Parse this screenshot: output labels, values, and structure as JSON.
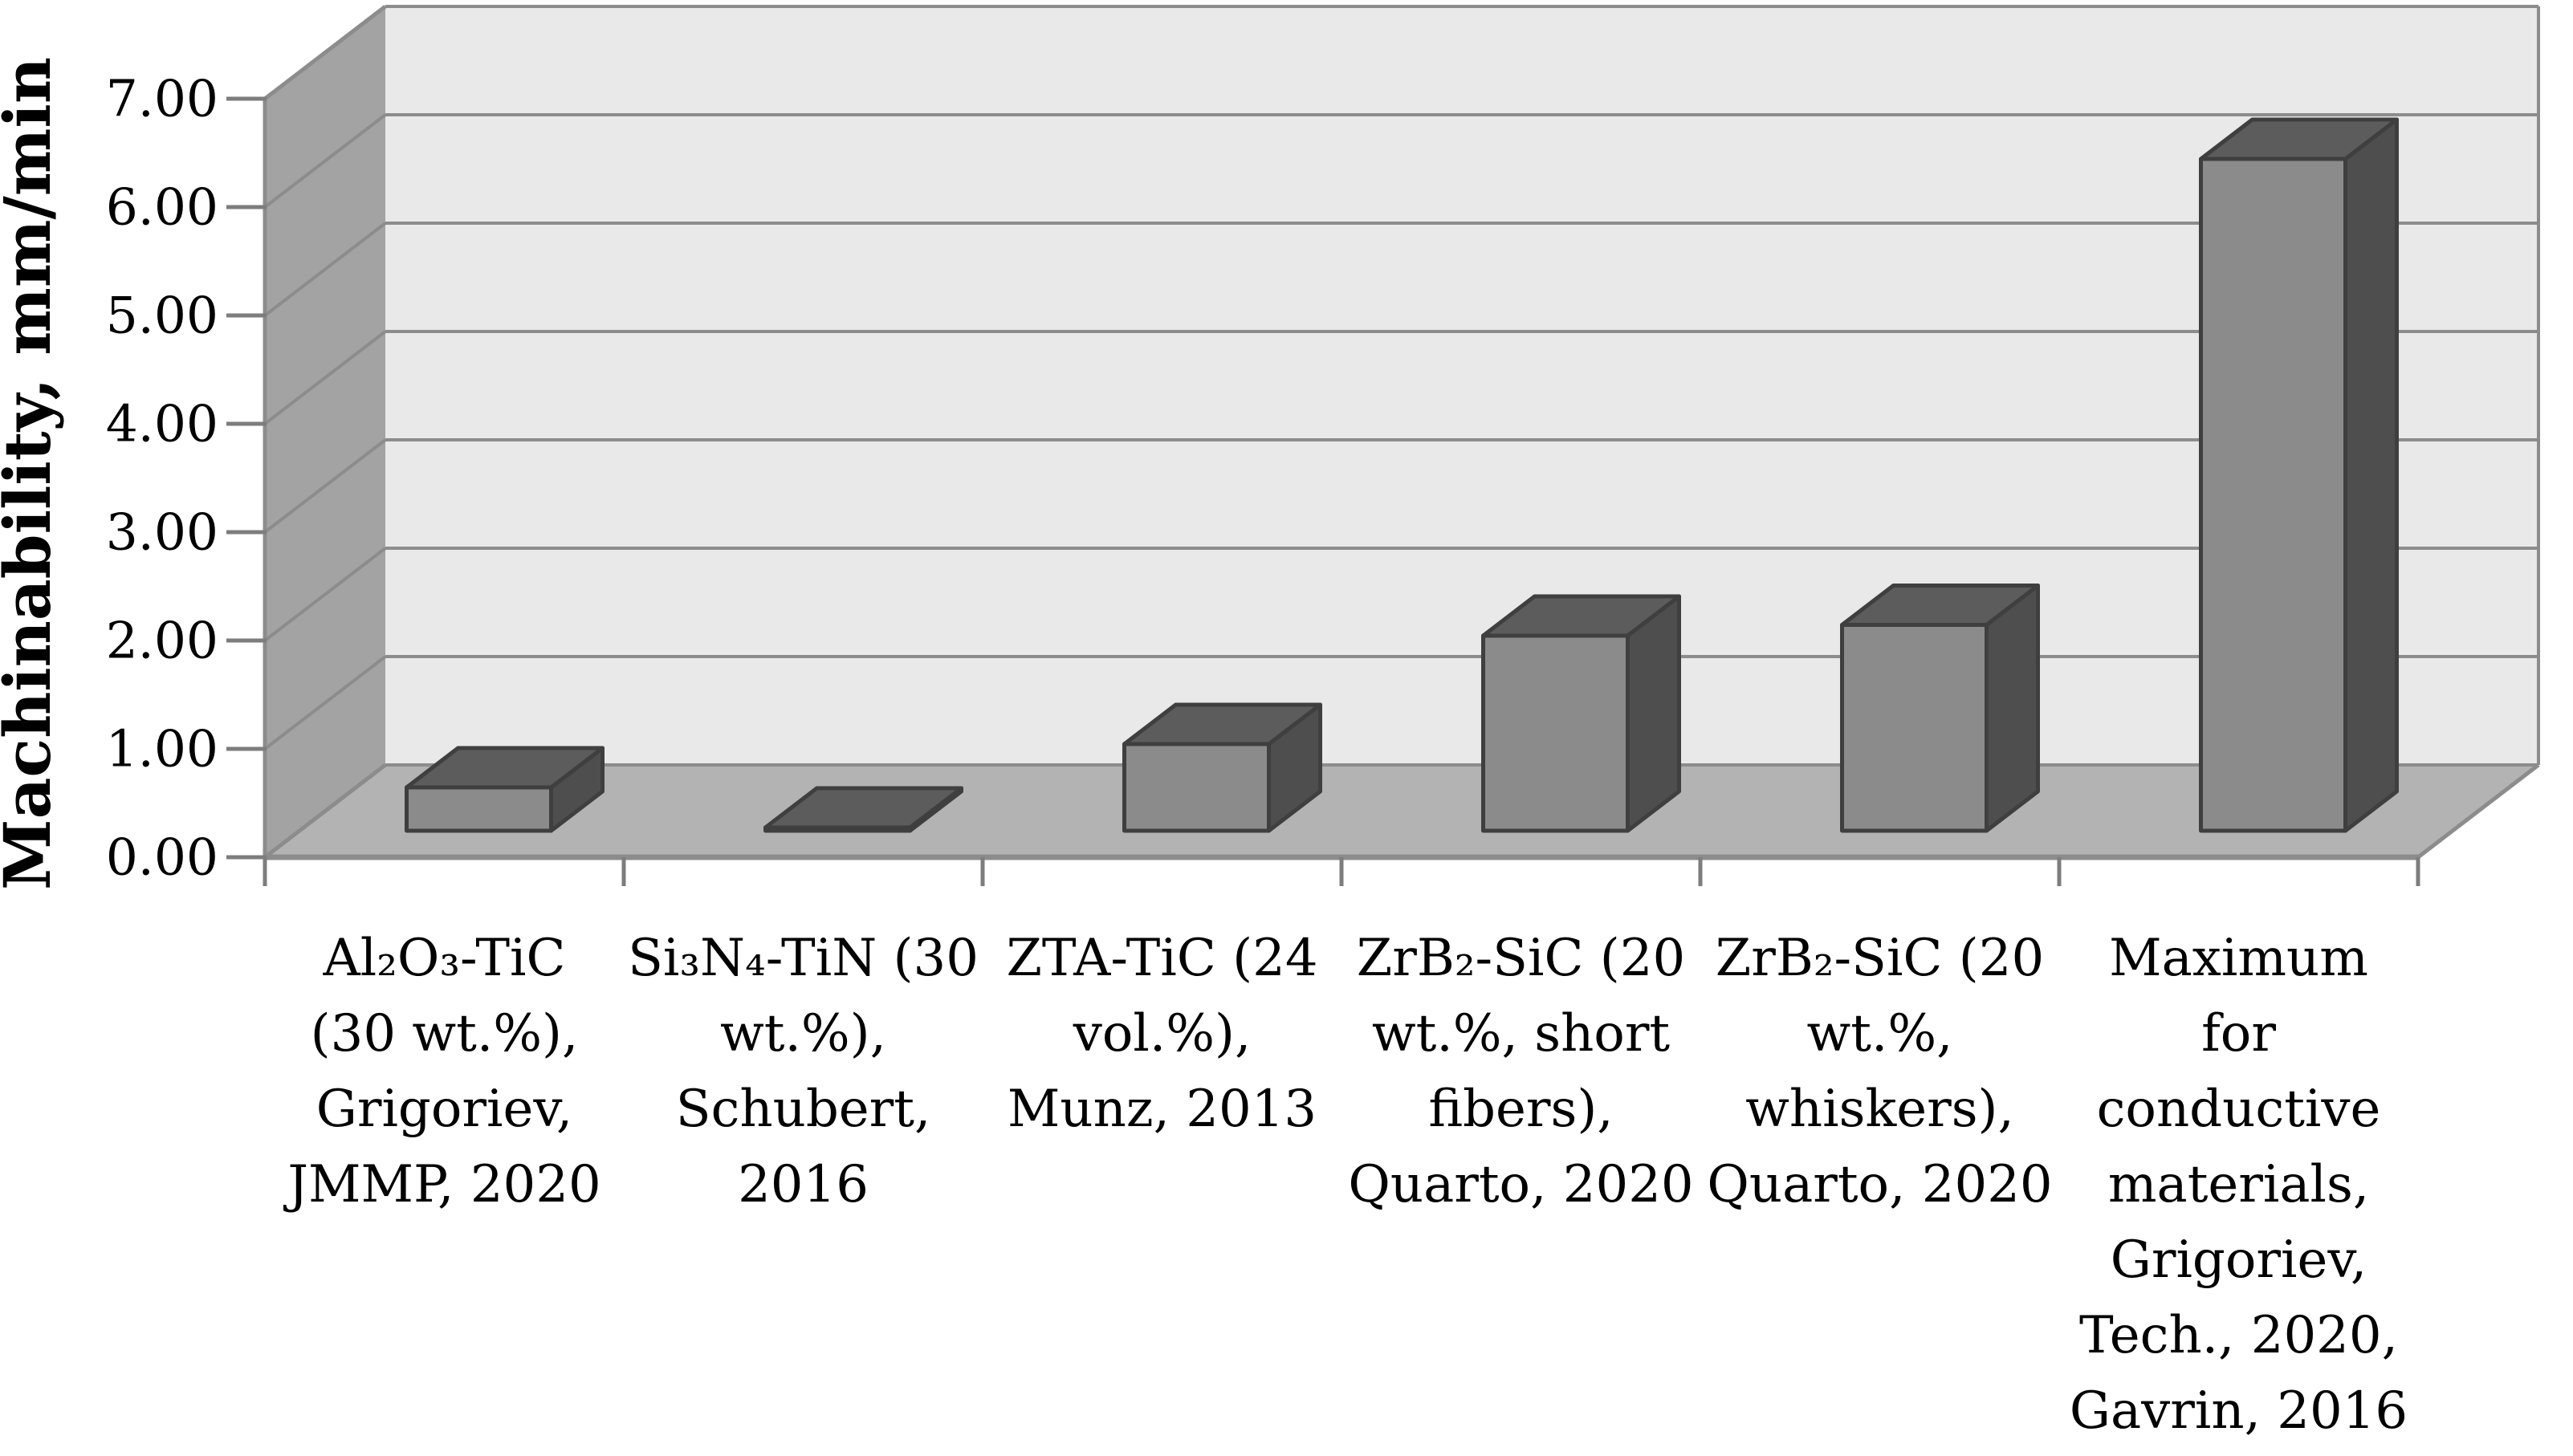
{
  "figure": {
    "kind": "3d-bar-chart-figure",
    "background": "#ffffff"
  },
  "chart_data": {
    "type": "bar",
    "projection": "3d",
    "title": "",
    "xlabel": "",
    "ylabel": "Machinability, mm/min",
    "unit": "mm/min",
    "ylim": [
      0,
      7
    ],
    "ytick_interval": 1.0,
    "ytick_labels": [
      "0.00",
      "1.00",
      "2.00",
      "3.00",
      "4.00",
      "5.00",
      "6.00",
      "7.00"
    ],
    "grid": "horizontal gridlines on walls, on",
    "legend": "none",
    "categories": [
      "Al₂O₃-TiC (30 wt.%), Grigoriev, JMMP, 2020",
      "Si₃N₄-TiN (30 wt.%), Schubert, 2016",
      "ZTA-TiC (24 vol.%), Munz, 2013",
      "ZrB₂-SiC (20 wt.%, short fibers), Quarto, 2020",
      "ZrB₂-SiC (20 wt.%, whiskers), Quarto, 2020",
      "Maximum for conductive materials, Grigoriev, Tech., 2020, Gavrin, 2016"
    ],
    "category_label_lines": [
      [
        "Al₂O₃-TiC",
        "(30 wt.%),",
        "Grigoriev,",
        "JMMP, 2020"
      ],
      [
        "Si₃N₄-TiN (30",
        "wt.%),",
        "Schubert,",
        "2016"
      ],
      [
        "ZTA-TiC (24",
        "vol.%),",
        "Munz, 2013"
      ],
      [
        "ZrB₂-SiC (20",
        "wt.%, short",
        "fibers),",
        "Quarto, 2020"
      ],
      [
        "ZrB₂-SiC (20",
        "wt.%,",
        "whiskers),",
        "Quarto, 2020"
      ],
      [
        "Maximum",
        "for",
        "conductive",
        "materials,",
        "Grigoriev,",
        "Tech., 2020,",
        "Gavrin, 2016"
      ]
    ],
    "values": [
      0.4,
      0.03,
      0.8,
      1.8,
      1.9,
      6.2
    ]
  },
  "colors": {
    "bar_front": "#8b8b8b",
    "bar_top": "#5c5c5c",
    "bar_side": "#4e4e4e",
    "bar_outline": "#3f3f3f",
    "wall_back": "#e9e9e9",
    "wall_left": "#a3a3a3",
    "floor": "#b3b3b3",
    "gridline": "#8c8c8c",
    "edge": "#8c8c8c",
    "tick": "#7d7d7d",
    "text": "#000000"
  }
}
